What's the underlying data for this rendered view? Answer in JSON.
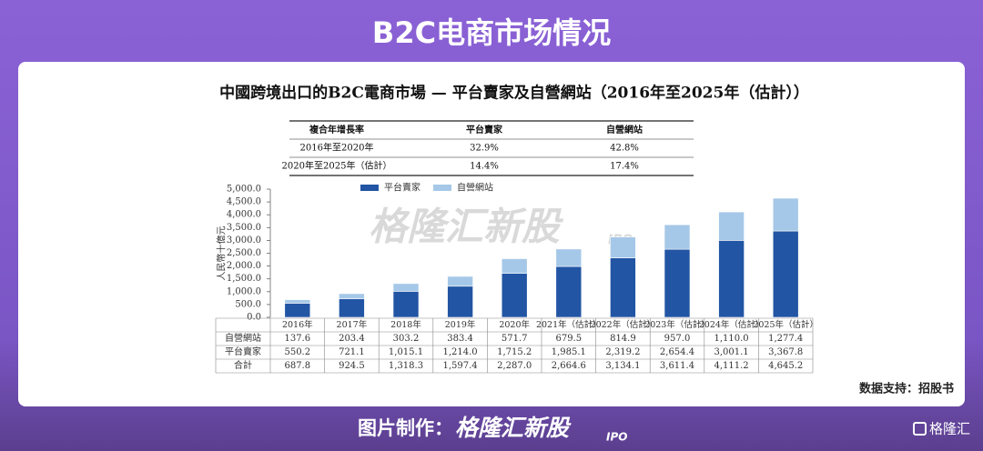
{
  "header": "B2C电商市场情况",
  "cagr_table": {
    "header": [
      "複合年增長率",
      "平台賣家",
      "自營網站"
    ],
    "rows": [
      [
        "2016年至2020年",
        "32.9%",
        "42.8%"
      ],
      [
        "2020年至2025年（估計）",
        "14.4%",
        "17.4%"
      ]
    ]
  },
  "chart_data": {
    "type": "stacked_bar",
    "title": "中國跨境出口的B2C電商市場 — 平台賣家及自營網站（2016年至2025年（估計））",
    "y_label": "人民幣十億元",
    "categories": [
      "2016年",
      "2017年",
      "2018年",
      "2019年",
      "2020年",
      "2021年（估計）",
      "2022年（估計）",
      "2023年（估計）",
      "2024年（估計）",
      "2025年（估計）"
    ],
    "series": [
      {
        "name": "平台賣家",
        "color": "#2255a4",
        "values": [
          550.2,
          721.1,
          1015.1,
          1214.0,
          1715.2,
          1985.1,
          2319.2,
          2654.4,
          3001.1,
          3367.8
        ],
        "value_labels": [
          "550.2",
          "721.1",
          "1,015.1",
          "1,214.0",
          "1,715.2",
          "1,985.1",
          "2,319.2",
          "2,654.4",
          "3,001.1",
          "3,367.8"
        ]
      },
      {
        "name": "自營網站",
        "color": "#a6c8e8",
        "values": [
          137.6,
          203.4,
          303.2,
          383.4,
          571.7,
          679.5,
          814.9,
          957.0,
          1110.0,
          1277.4
        ],
        "value_labels": [
          "137.6",
          "203.4",
          "303.2",
          "383.4",
          "571.7",
          "679.5",
          "814.9",
          "957.0",
          "1,110.0",
          "1,277.4"
        ]
      }
    ],
    "totals": {
      "name": "合計",
      "labels": [
        "687.8",
        "924.5",
        "1,318.3",
        "1,597.4",
        "2,287.0",
        "2,664.6",
        "3,134.1",
        "3,611.4",
        "4,111.2",
        "4,645.2"
      ]
    },
    "ylim": [
      0,
      5000
    ],
    "yticks": [
      {
        "value": 0,
        "label": "0.0"
      },
      {
        "value": 500,
        "label": "500.0"
      },
      {
        "value": 1000,
        "label": "1,000.0"
      },
      {
        "value": 1500,
        "label": "1,500.0"
      },
      {
        "value": 2000,
        "label": "2,000.0"
      },
      {
        "value": 2500,
        "label": "2,500.0"
      },
      {
        "value": 3000,
        "label": "3,000.0"
      },
      {
        "value": 3500,
        "label": "3,500.0"
      },
      {
        "value": 4000,
        "label": "4,000.0"
      },
      {
        "value": 4500,
        "label": "4,500.0"
      },
      {
        "value": 5000,
        "label": "5,000.0"
      }
    ],
    "legend": "top"
  },
  "watermark": {
    "brand": "格隆汇新股",
    "tag": "IPO"
  },
  "source": "数据支持：招股书",
  "footer": {
    "label": "图片制作：",
    "brand": "格隆汇新股",
    "tag": "IPO"
  },
  "logo": "格隆汇"
}
